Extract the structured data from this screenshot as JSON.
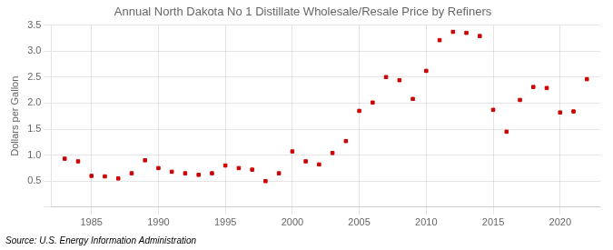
{
  "chart_data": {
    "type": "scatter",
    "title": "Annual North Dakota No 1 Distillate Wholesale/Resale Price by Refiners",
    "ylabel": "Dollars per Gallon",
    "annotation": "Source: U.S. Energy Information Administration",
    "x": [
      1983,
      1984,
      1985,
      1986,
      1987,
      1988,
      1989,
      1990,
      1991,
      1992,
      1993,
      1994,
      1995,
      1996,
      1997,
      1998,
      1999,
      2000,
      2001,
      2002,
      2003,
      2004,
      2005,
      2006,
      2007,
      2008,
      2009,
      2010,
      2011,
      2012,
      2013,
      2014,
      2015,
      2016,
      2017,
      2018,
      2019,
      2020,
      2021,
      2022
    ],
    "values": [
      0.93,
      0.88,
      0.6,
      0.59,
      0.55,
      0.65,
      0.9,
      0.75,
      0.68,
      0.65,
      0.62,
      0.65,
      0.8,
      0.75,
      0.72,
      0.5,
      0.65,
      1.07,
      0.88,
      0.82,
      1.04,
      1.27,
      1.85,
      2.01,
      2.5,
      2.44,
      2.08,
      2.62,
      3.21,
      3.37,
      3.35,
      3.29,
      1.87,
      1.45,
      2.06,
      2.31,
      2.29,
      1.82,
      1.84,
      2.46
    ],
    "color": "#cc0000",
    "marker": "square",
    "xlim": [
      1982,
      2023
    ],
    "xticks": [
      1985,
      1990,
      1995,
      2000,
      2005,
      2010,
      2015,
      2020
    ],
    "ylim": [
      0,
      3.5
    ],
    "yticks": [
      {
        "value": 0.0,
        "label": null
      },
      0.5,
      {
        "value": 1.0,
        "label": "1.0"
      },
      1.5,
      {
        "value": 2.0,
        "label": "2.0"
      },
      2.5,
      {
        "value": 3.0,
        "label": "3.0"
      },
      3.5
    ],
    "grid": true,
    "legend": false
  }
}
